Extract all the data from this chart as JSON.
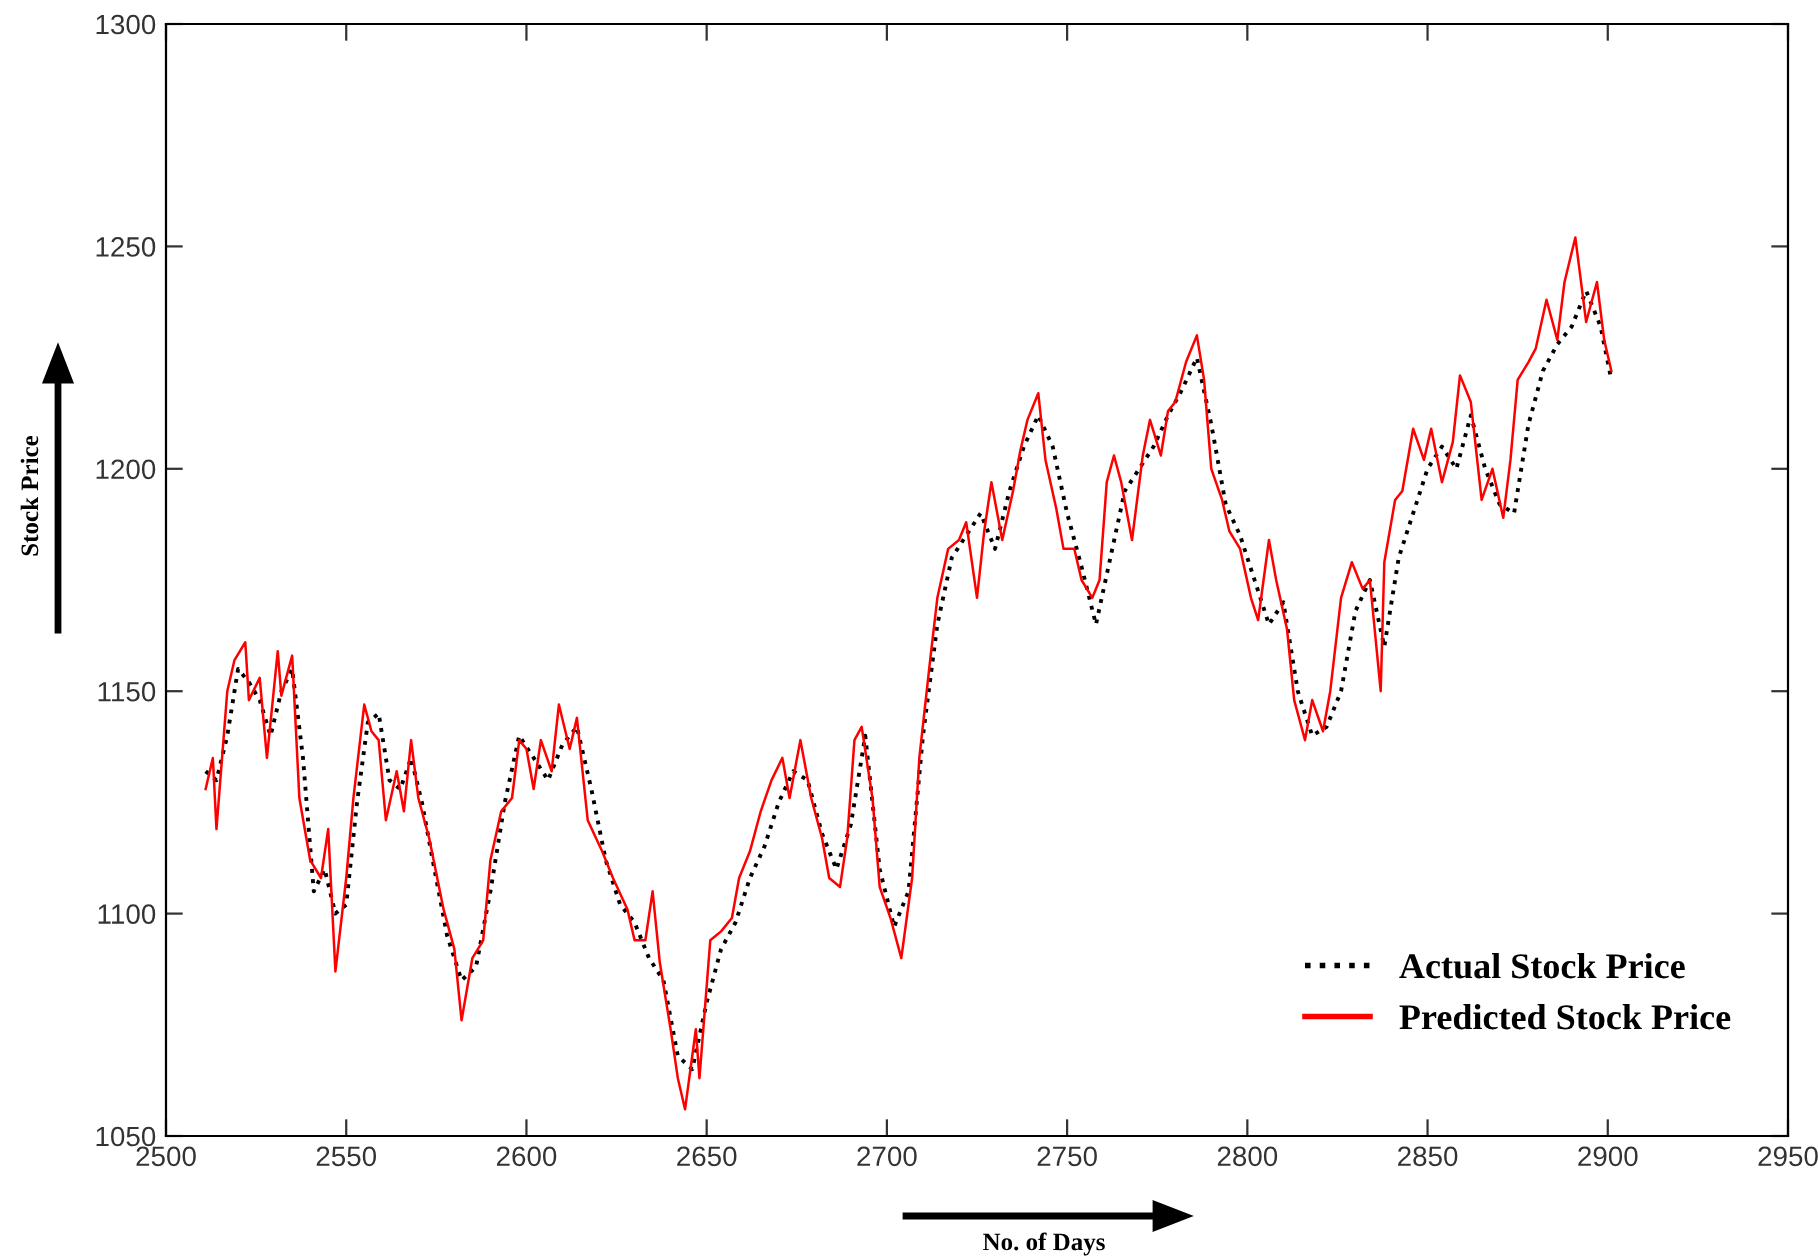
{
  "chart_data": {
    "type": "line",
    "xlabel": "No. of Days",
    "ylabel": "Stock Price",
    "xlim": [
      2500,
      2950
    ],
    "xticks": [
      2500,
      2550,
      2600,
      2650,
      2700,
      2750,
      2800,
      2850,
      2900,
      2950
    ],
    "ylim": [
      1050,
      1300
    ],
    "yticks": [
      1050,
      1100,
      1150,
      1200,
      1250,
      1300
    ],
    "grid": false,
    "legend": "bottom right",
    "series": [
      {
        "name": "Actual Stock Price",
        "color": "#000000",
        "line_style": "dotted",
        "x": [
          2511,
          2514,
          2517,
          2520,
          2523,
          2526,
          2529,
          2532,
          2535,
          2538,
          2541,
          2544,
          2547,
          2550,
          2553,
          2556,
          2559,
          2562,
          2565,
          2568,
          2571,
          2574,
          2578,
          2582,
          2586,
          2590,
          2594,
          2598,
          2602,
          2606,
          2610,
          2614,
          2618,
          2622,
          2626,
          2630,
          2634,
          2638,
          2642,
          2646,
          2650,
          2654,
          2658,
          2662,
          2666,
          2670,
          2674,
          2678,
          2682,
          2686,
          2690,
          2694,
          2698,
          2702,
          2706,
          2710,
          2714,
          2718,
          2722,
          2726,
          2730,
          2734,
          2738,
          2742,
          2746,
          2750,
          2754,
          2758,
          2762,
          2766,
          2770,
          2774,
          2778,
          2782,
          2786,
          2790,
          2794,
          2798,
          2802,
          2806,
          2810,
          2814,
          2818,
          2822,
          2826,
          2830,
          2834,
          2838,
          2842,
          2846,
          2850,
          2854,
          2858,
          2862,
          2866,
          2870,
          2874,
          2878,
          2882,
          2886,
          2890,
          2894,
          2898,
          2901
        ],
        "values": [
          1132,
          1130,
          1140,
          1155,
          1152,
          1148,
          1140,
          1150,
          1155,
          1135,
          1105,
          1110,
          1100,
          1102,
          1125,
          1143,
          1145,
          1130,
          1128,
          1135,
          1125,
          1112,
          1095,
          1085,
          1088,
          1105,
          1125,
          1140,
          1135,
          1130,
          1138,
          1142,
          1128,
          1112,
          1102,
          1098,
          1090,
          1085,
          1068,
          1065,
          1080,
          1092,
          1098,
          1108,
          1115,
          1125,
          1132,
          1130,
          1118,
          1110,
          1120,
          1140,
          1110,
          1097,
          1105,
          1140,
          1165,
          1180,
          1185,
          1190,
          1182,
          1195,
          1205,
          1212,
          1205,
          1190,
          1178,
          1165,
          1180,
          1195,
          1200,
          1205,
          1212,
          1218,
          1225,
          1210,
          1192,
          1185,
          1175,
          1165,
          1170,
          1150,
          1140,
          1142,
          1150,
          1168,
          1175,
          1160,
          1180,
          1190,
          1200,
          1205,
          1200,
          1212,
          1200,
          1192,
          1190,
          1210,
          1222,
          1228,
          1232,
          1240,
          1232,
          1220
        ]
      },
      {
        "name": "Predicted Stock Price",
        "color": "#ff0000",
        "line_style": "solid",
        "x": [
          2511,
          2513,
          2514,
          2517,
          2519,
          2522,
          2523,
          2526,
          2528,
          2531,
          2532,
          2535,
          2537,
          2540,
          2543,
          2545,
          2547,
          2550,
          2552,
          2555,
          2557,
          2559,
          2561,
          2564,
          2566,
          2568,
          2570,
          2573,
          2577,
          2580,
          2582,
          2585,
          2588,
          2590,
          2593,
          2596,
          2598,
          2600,
          2602,
          2604,
          2607,
          2609,
          2612,
          2614,
          2617,
          2621,
          2624,
          2628,
          2630,
          2633,
          2635,
          2637,
          2640,
          2642,
          2644,
          2647,
          2648,
          2651,
          2654,
          2657,
          2659,
          2662,
          2665,
          2668,
          2671,
          2673,
          2676,
          2679,
          2682,
          2684,
          2687,
          2689,
          2691,
          2693,
          2696,
          2698,
          2701,
          2704,
          2707,
          2709,
          2712,
          2714,
          2717,
          2720,
          2722,
          2725,
          2727,
          2729,
          2732,
          2735,
          2737,
          2739,
          2742,
          2744,
          2747,
          2749,
          2752,
          2754,
          2757,
          2759,
          2761,
          2763,
          2765,
          2768,
          2771,
          2773,
          2776,
          2778,
          2780,
          2783,
          2786,
          2788,
          2790,
          2793,
          2795,
          2798,
          2801,
          2803,
          2806,
          2808,
          2811,
          2813,
          2816,
          2818,
          2821,
          2823,
          2826,
          2829,
          2832,
          2834,
          2837,
          2838,
          2841,
          2843,
          2846,
          2849,
          2851,
          2854,
          2857,
          2859,
          2862,
          2865,
          2868,
          2871,
          2873,
          2875,
          2878,
          2880,
          2883,
          2886,
          2888,
          2891,
          2894,
          2897,
          2899,
          2901
        ],
        "values": [
          1128,
          1135,
          1119,
          1150,
          1157,
          1161,
          1148,
          1153,
          1135,
          1159,
          1149,
          1158,
          1126,
          1112,
          1108,
          1119,
          1087,
          1108,
          1126,
          1147,
          1141,
          1139,
          1121,
          1132,
          1123,
          1139,
          1126,
          1117,
          1101,
          1092,
          1076,
          1090,
          1094,
          1112,
          1123,
          1126,
          1139,
          1137,
          1128,
          1139,
          1132,
          1147,
          1137,
          1144,
          1121,
          1114,
          1108,
          1101,
          1094,
          1094,
          1105,
          1089,
          1074,
          1063,
          1056,
          1074,
          1063,
          1094,
          1096,
          1099,
          1108,
          1114,
          1123,
          1130,
          1135,
          1126,
          1139,
          1126,
          1117,
          1108,
          1106,
          1117,
          1139,
          1142,
          1126,
          1106,
          1099,
          1090,
          1108,
          1135,
          1157,
          1171,
          1182,
          1184,
          1188,
          1171,
          1186,
          1197,
          1184,
          1195,
          1204,
          1211,
          1217,
          1202,
          1191,
          1182,
          1182,
          1175,
          1171,
          1175,
          1197,
          1203,
          1197,
          1184,
          1203,
          1211,
          1203,
          1213,
          1215,
          1224,
          1230,
          1220,
          1200,
          1193,
          1186,
          1182,
          1171,
          1166,
          1184,
          1175,
          1164,
          1148,
          1139,
          1148,
          1141,
          1150,
          1171,
          1179,
          1173,
          1175,
          1150,
          1179,
          1193,
          1195,
          1209,
          1202,
          1209,
          1197,
          1206,
          1221,
          1215,
          1193,
          1200,
          1189,
          1202,
          1220,
          1224,
          1227,
          1238,
          1229,
          1242,
          1252,
          1233,
          1242,
          1229,
          1222
        ]
      }
    ]
  }
}
